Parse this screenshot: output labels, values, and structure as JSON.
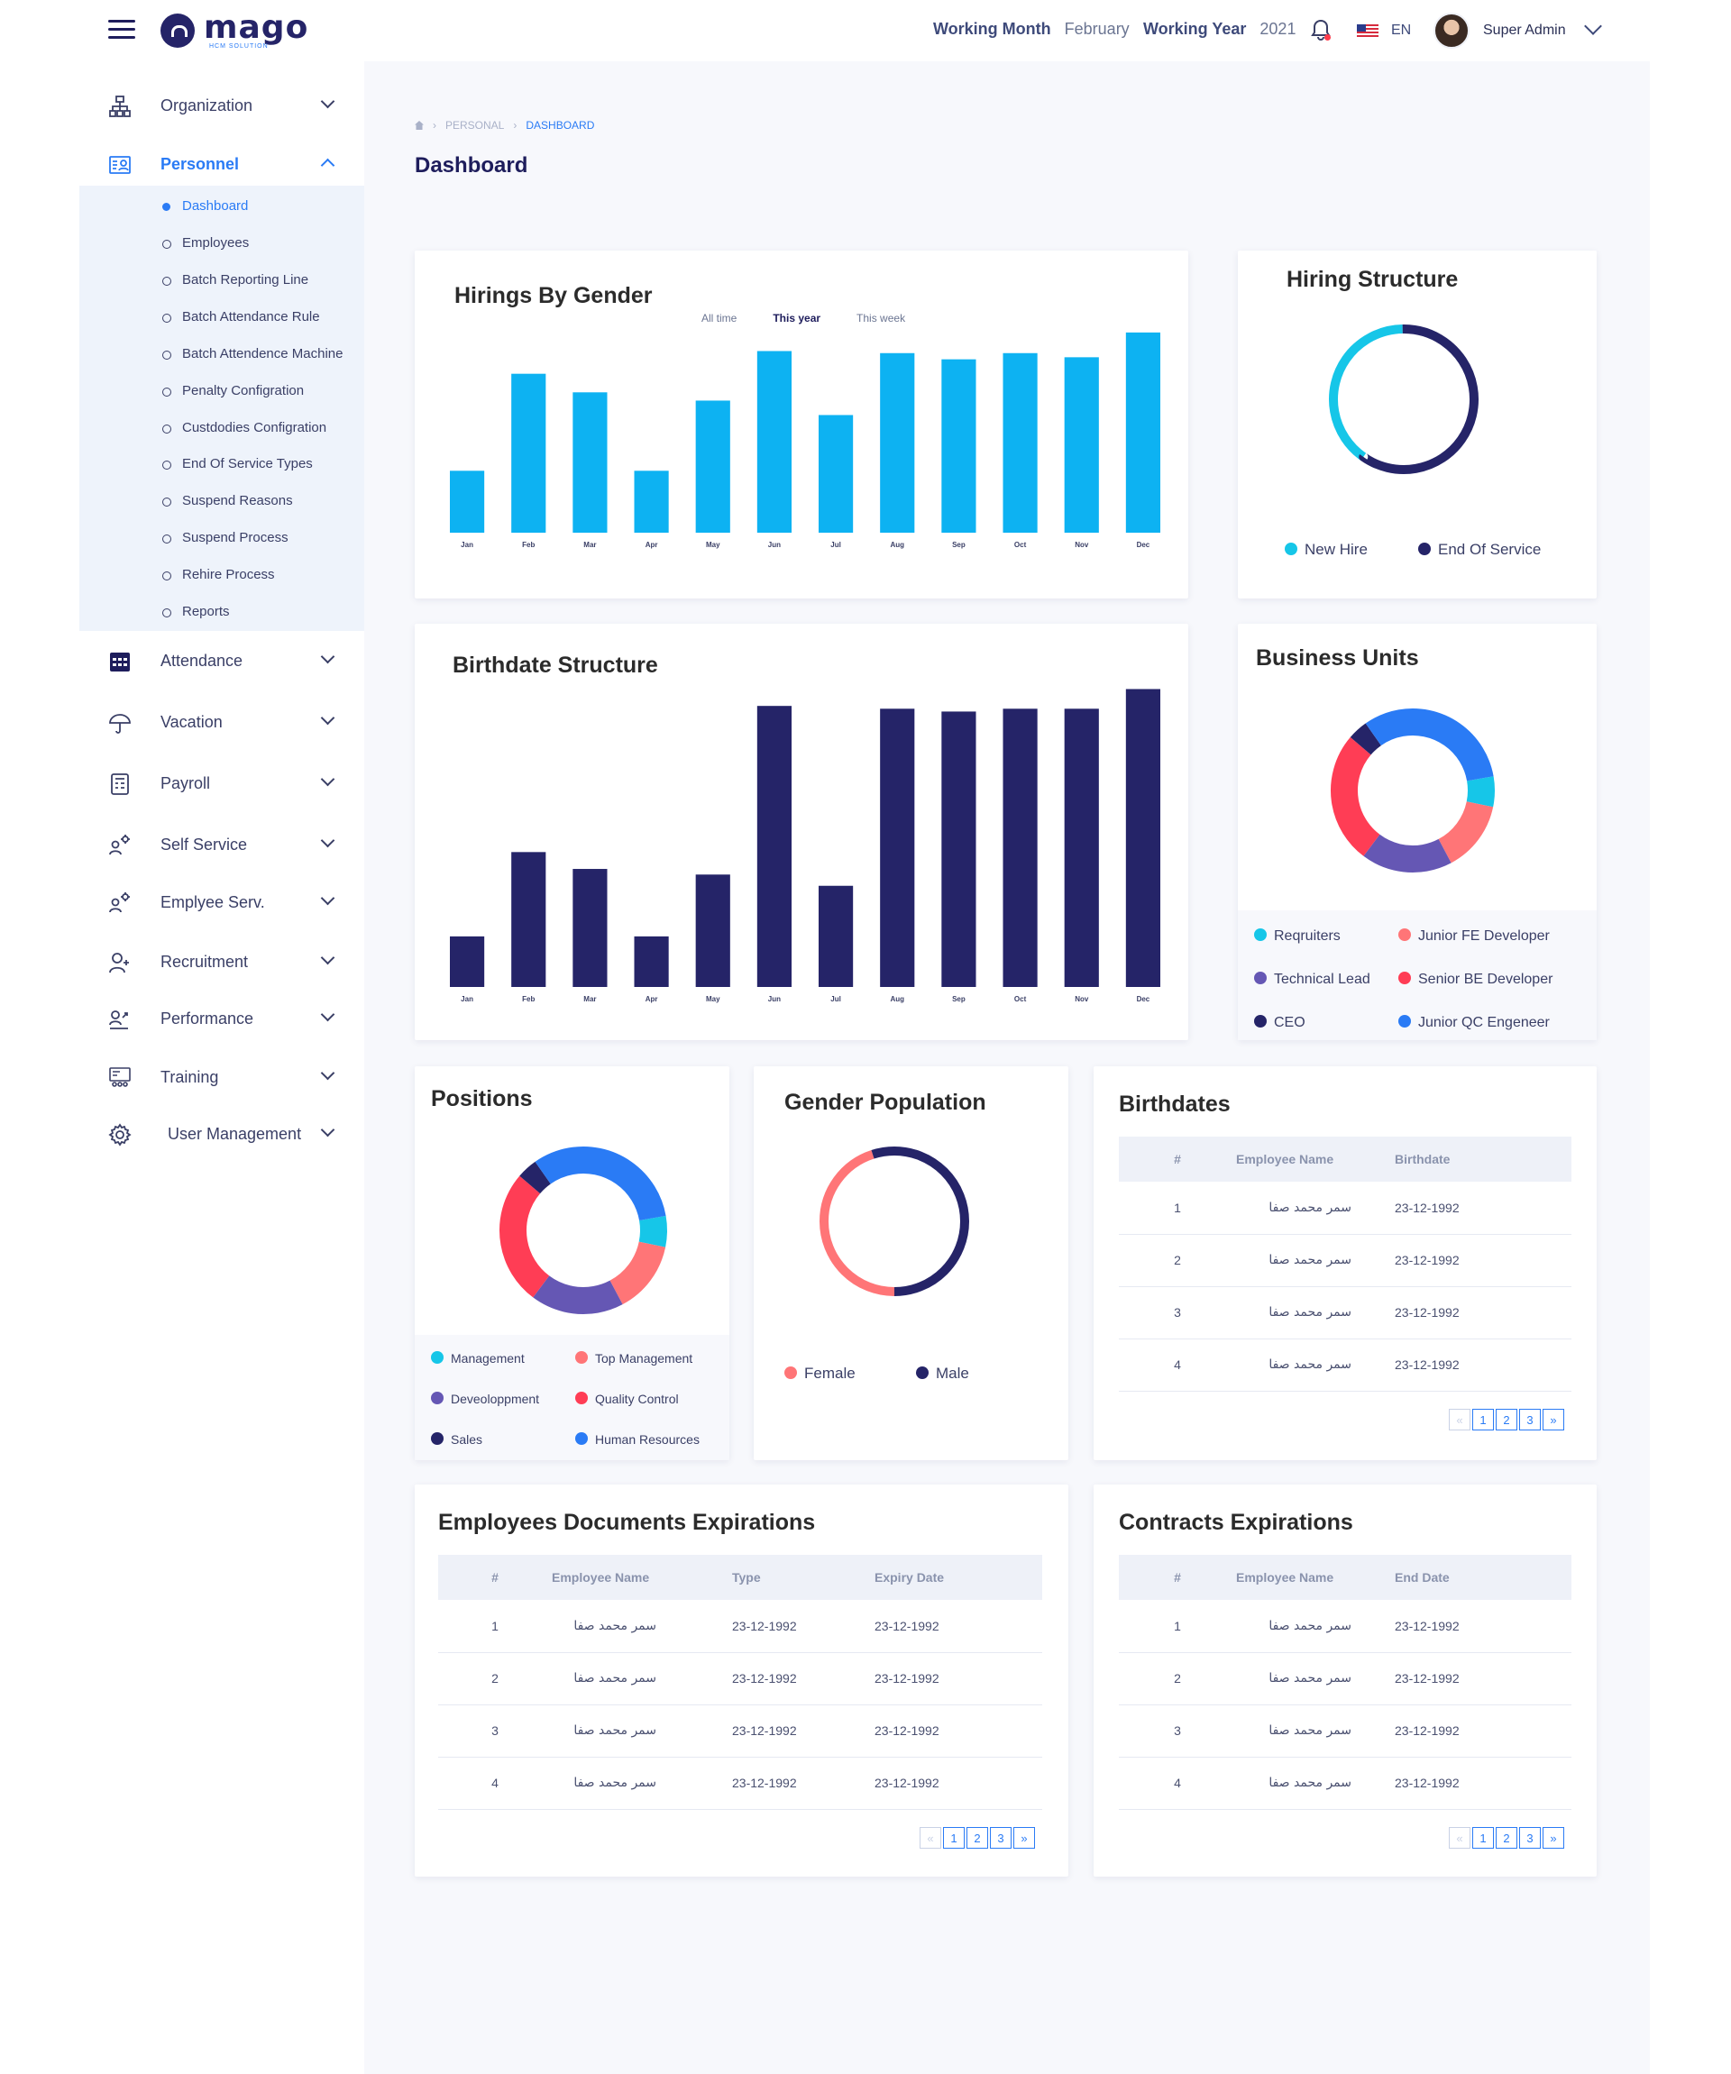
{
  "header": {
    "logo_name": "mago",
    "logo_sub": "HCM SOLUTION",
    "working_month_label": "Working Month",
    "working_month": "February",
    "working_year_label": "Working Year",
    "working_year": "2021",
    "language": "EN",
    "user_name": "Super Admin"
  },
  "sidebar": {
    "items": [
      {
        "label": "Organization",
        "icon": "org-chart-icon"
      },
      {
        "label": "Personnel",
        "icon": "id-card-icon"
      },
      {
        "label": "Attendance",
        "icon": "calendar-icon"
      },
      {
        "label": "Vacation",
        "icon": "umbrella-icon"
      },
      {
        "label": "Payroll",
        "icon": "payroll-icon"
      },
      {
        "label": "Self Service",
        "icon": "user-gear-icon"
      },
      {
        "label": "Emplyee Serv.",
        "icon": "user-gear-icon"
      },
      {
        "label": "Recruitment",
        "icon": "user-plus-icon"
      },
      {
        "label": "Performance",
        "icon": "user-trend-icon"
      },
      {
        "label": "Training",
        "icon": "training-icon"
      },
      {
        "label": "User Management",
        "icon": "gear-icon"
      }
    ],
    "personnel_sub": [
      "Dashboard",
      "Employees",
      "Batch Reporting Line",
      "Batch Attendance Rule",
      "Batch Attendence Machine",
      "Penalty Configration",
      "Custdodies Configration",
      "End Of Service Types",
      "Suspend Reasons",
      "Suspend Process",
      "Rehire Process",
      "Reports"
    ]
  },
  "breadcrumb": {
    "parent": "PERSONAL",
    "current": "DASHBOARD"
  },
  "page_title": "Dashboard",
  "hirings": {
    "title": "Hirings By Gender",
    "tabs": [
      "All time",
      "This year",
      "This week"
    ],
    "selected_tab": "This year"
  },
  "hiring_structure": {
    "title": "Hiring Structure"
  },
  "birthdate_structure": {
    "title": "Birthdate Structure"
  },
  "business_units": {
    "title": "Business Units"
  },
  "positions": {
    "title": "Positions"
  },
  "gender_population": {
    "title": "Gender Population"
  },
  "birthdates": {
    "title": "Birthdates",
    "columns": [
      "#",
      "Employee Name",
      "Birthdate"
    ],
    "rows": [
      [
        "1",
        "سمر محمد صفا",
        "23-12-1992"
      ],
      [
        "2",
        "سمر محمد صفا",
        "23-12-1992"
      ],
      [
        "3",
        "سمر محمد صفا",
        "23-12-1992"
      ],
      [
        "4",
        "سمر محمد صفا",
        "23-12-1992"
      ]
    ]
  },
  "documents": {
    "title": "Employees Documents Expirations",
    "columns": [
      "#",
      "Employee Name",
      "Type",
      "Expiry Date"
    ],
    "rows": [
      [
        "1",
        "سمر محمد صفا",
        "23-12-1992",
        "23-12-1992"
      ],
      [
        "2",
        "سمر محمد صفا",
        "23-12-1992",
        "23-12-1992"
      ],
      [
        "3",
        "سمر محمد صفا",
        "23-12-1992",
        "23-12-1992"
      ],
      [
        "4",
        "سمر محمد صفا",
        "23-12-1992",
        "23-12-1992"
      ]
    ]
  },
  "contracts": {
    "title": "Contracts Expirations",
    "columns": [
      "#",
      "Employee Name",
      "End Date"
    ],
    "rows": [
      [
        "1",
        "سمر محمد صفا",
        "23-12-1992"
      ],
      [
        "2",
        "سمر محمد صفا",
        "23-12-1992"
      ],
      [
        "3",
        "سمر محمد صفا",
        "23-12-1992"
      ],
      [
        "4",
        "سمر محمد صفا",
        "23-12-1992"
      ]
    ]
  },
  "pagination": {
    "prev": "«",
    "pages": [
      "1",
      "2",
      "3"
    ],
    "next": "»"
  },
  "colors": {
    "navy": "#252468",
    "cyan": "#0db2f2",
    "teal": "#16c6e8",
    "blue": "#2a7bf5",
    "purple": "#6557b4",
    "coral": "#ff7577",
    "red": "#ff3d55"
  },
  "chart_data": [
    {
      "type": "bar",
      "title": "Hirings By Gender",
      "categories": [
        "Jan",
        "Feb",
        "Mar",
        "Apr",
        "May",
        "Jun",
        "Jul",
        "Aug",
        "Sep",
        "Oct",
        "Nov",
        "Dec"
      ],
      "values": [
        30,
        77,
        68,
        30,
        64,
        88,
        57,
        87,
        84,
        87,
        85,
        97
      ],
      "ylim": [
        0,
        100
      ],
      "color": "#0db2f2"
    },
    {
      "type": "pie",
      "title": "Hiring Structure",
      "labels": [
        "New Hire",
        "End Of Service"
      ],
      "values": [
        40,
        60
      ],
      "colors": [
        "#16c6e8",
        "#252468"
      ]
    },
    {
      "type": "bar",
      "title": "Birthdate Structure",
      "categories": [
        "Jan",
        "Feb",
        "Mar",
        "Apr",
        "May",
        "Jun",
        "Jul",
        "Aug",
        "Sep",
        "Oct",
        "Nov",
        "Dec"
      ],
      "values": [
        18,
        48,
        42,
        18,
        40,
        100,
        36,
        99,
        98,
        99,
        99,
        106
      ],
      "ylim": [
        0,
        110
      ],
      "color": "#252468"
    },
    {
      "type": "pie",
      "title": "Business Units",
      "labels": [
        "Reqruiters",
        "Junior FE Developer",
        "Technical Lead",
        "Senior BE Developer",
        "CEO",
        "Junior QC Engeneer"
      ],
      "values": [
        6,
        14,
        18,
        26,
        4,
        32
      ],
      "colors": [
        "#16c6e8",
        "#ff7577",
        "#6557b4",
        "#ff3d55",
        "#252468",
        "#2a7bf5"
      ]
    },
    {
      "type": "pie",
      "title": "Positions",
      "labels": [
        "Management",
        "Top Management",
        "Deveoloppment",
        "Quality Control",
        "Sales",
        "Human Resources"
      ],
      "values": [
        6,
        14,
        18,
        26,
        4,
        32
      ],
      "colors": [
        "#16c6e8",
        "#ff7577",
        "#6557b4",
        "#ff3d55",
        "#252468",
        "#2a7bf5"
      ]
    },
    {
      "type": "pie",
      "title": "Gender Population",
      "labels": [
        "Female",
        "Male"
      ],
      "values": [
        45,
        55
      ],
      "colors": [
        "#ff7577",
        "#252468"
      ]
    }
  ]
}
